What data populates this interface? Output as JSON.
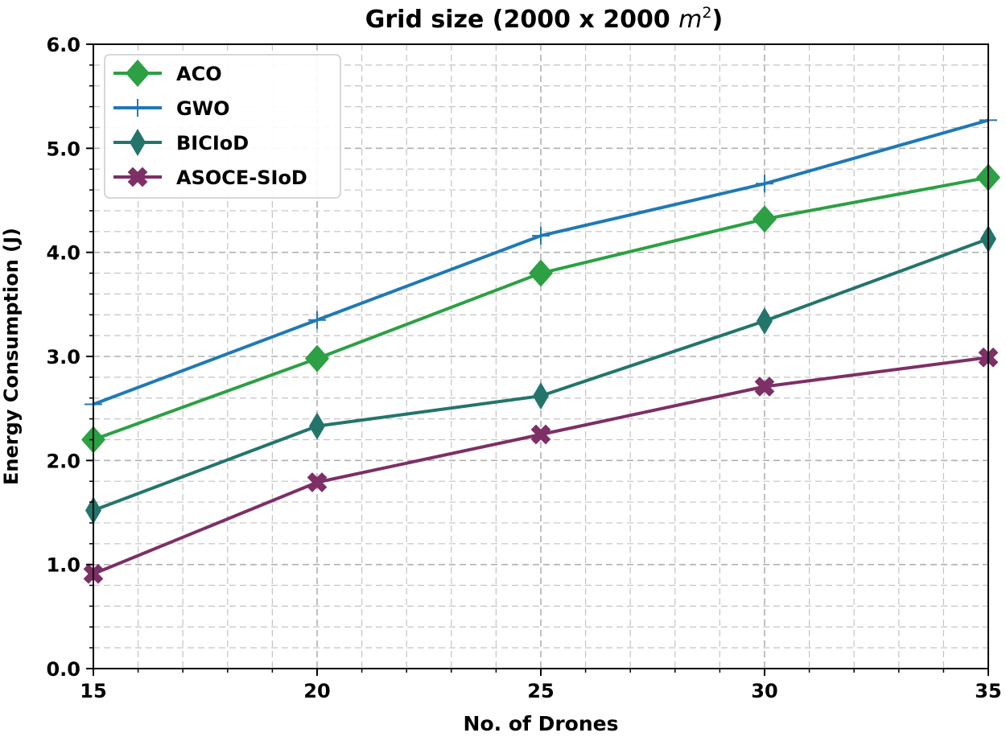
{
  "chart_data": {
    "type": "line",
    "title": "Grid size (2000 x 2000 ",
    "title_unit": "m",
    "title_exp": "2",
    "title_close": ")",
    "xlabel": "No. of Drones",
    "ylabel": "Energy Consumption (J)",
    "xlim": [
      15,
      35
    ],
    "ylim": [
      0.0,
      6.0
    ],
    "x_ticks": [
      15,
      20,
      25,
      30,
      35
    ],
    "y_ticks": [
      "0.0",
      "1.0",
      "2.0",
      "3.0",
      "4.0",
      "5.0",
      "6.0"
    ],
    "grid": true,
    "legend_position": "top-left",
    "x": [
      15,
      20,
      25,
      30,
      35
    ],
    "series": [
      {
        "name": "ACO",
        "color": "#2ca043",
        "marker": "diamond",
        "values": [
          2.2,
          2.98,
          3.8,
          4.32,
          4.72
        ]
      },
      {
        "name": "GWO",
        "color": "#2079b4",
        "marker": "plus",
        "values": [
          2.54,
          3.35,
          4.16,
          4.66,
          5.27
        ]
      },
      {
        "name": "BICIoD",
        "color": "#23756b",
        "marker": "thin-diamond",
        "values": [
          1.52,
          2.33,
          2.62,
          3.34,
          4.13
        ]
      },
      {
        "name": "ASOCE-SIoD",
        "color": "#7d2f66",
        "marker": "x-filled",
        "values": [
          0.91,
          1.79,
          2.25,
          2.71,
          2.99
        ]
      }
    ]
  }
}
